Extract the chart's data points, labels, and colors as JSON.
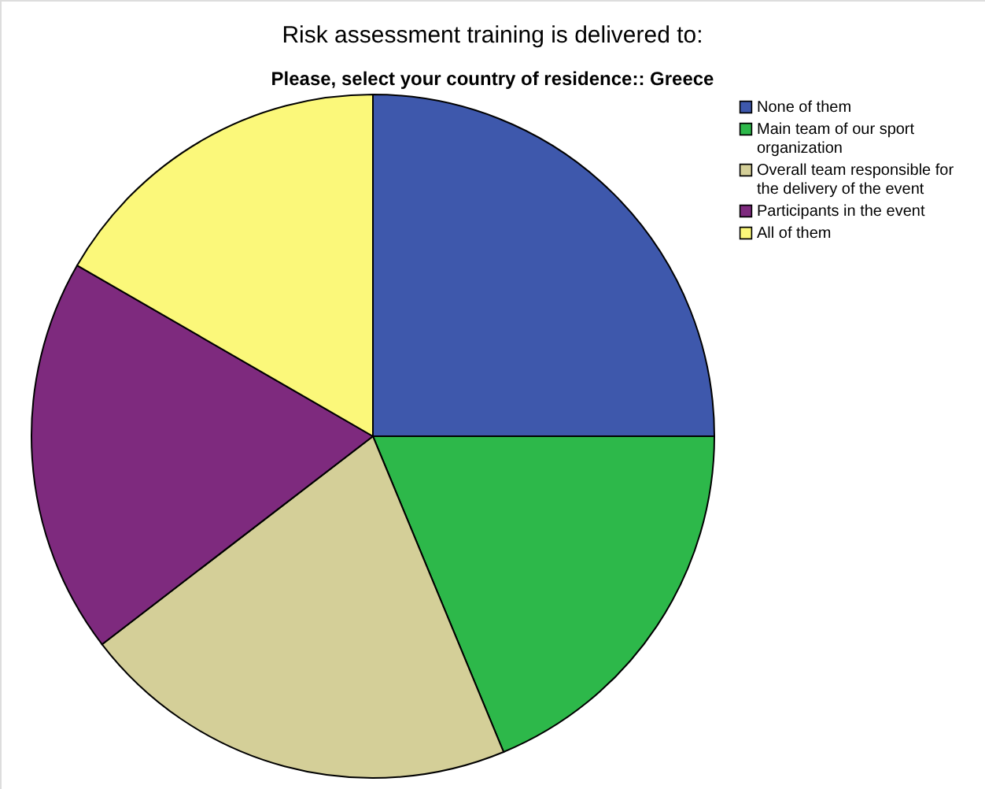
{
  "chart_data": {
    "type": "pie",
    "title": "Risk assessment training is delivered to:",
    "subtitle": "Please, select your country of residence:: Greece",
    "categories": [
      "None of them",
      "Main team of our sport organization",
      "Overall team responsible for the delivery of the event",
      "Participants in the event",
      "All of them"
    ],
    "values": [
      25,
      18.75,
      20.83,
      18.75,
      16.67
    ],
    "colors": [
      "#3e58ac",
      "#2db84a",
      "#d4cf98",
      "#7e2a7e",
      "#fbf87a"
    ],
    "legend": "top right"
  }
}
